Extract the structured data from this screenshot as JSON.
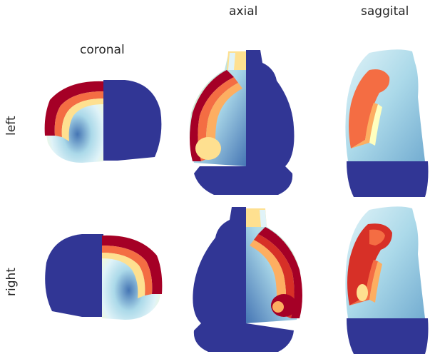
{
  "figure": {
    "columns": [
      "coronal",
      "axial",
      "saggital"
    ],
    "rows": [
      "left",
      "right"
    ],
    "colors": {
      "background_blue": "#313695",
      "dark_red": "#a50026",
      "red": "#d73027",
      "orange": "#f46d43",
      "light_orange": "#fdae61",
      "pale_yellow": "#fee090",
      "cream": "#ffffbf",
      "light_blue": "#e0f3f8",
      "mid_blue": "#abd9e9",
      "blue": "#74add1",
      "deep_blue": "#4575b4",
      "label_text": "#262626"
    }
  }
}
